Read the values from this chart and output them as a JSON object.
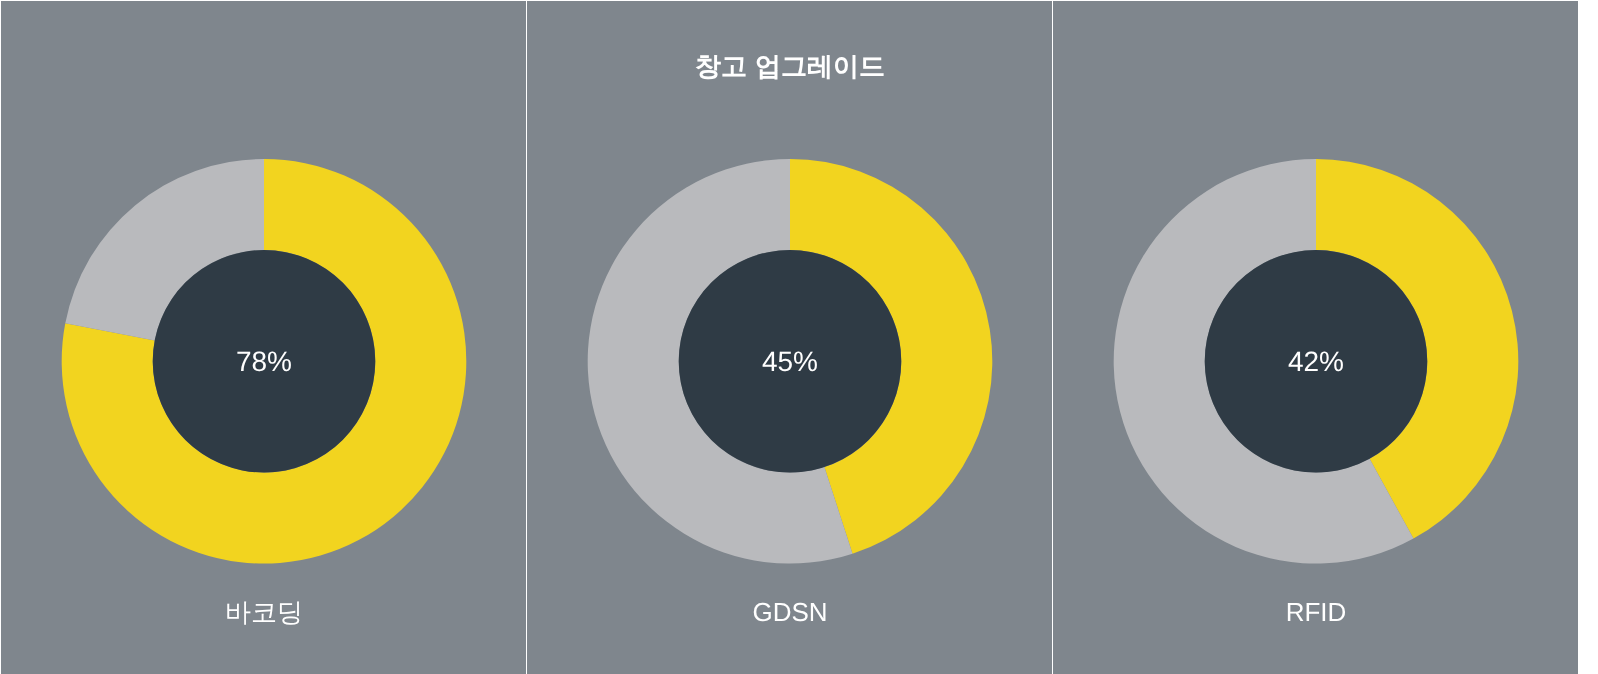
{
  "chart_data": [
    {
      "type": "donut",
      "xlabel": "바코딩",
      "categories": [
        null,
        null
      ],
      "values": [
        78,
        22
      ],
      "colors": [
        "#f2d41f",
        "#b9babd"
      ],
      "value_labels": [
        "78%",
        null
      ]
    },
    {
      "type": "donut",
      "title": "창고 업그레이드",
      "xlabel": "GDSN",
      "categories": [
        null,
        null
      ],
      "values": [
        45,
        55
      ],
      "colors": [
        "#f2d41f",
        "#b9babd"
      ],
      "value_labels": [
        "45%",
        null
      ]
    },
    {
      "type": "donut",
      "xlabel": "RFID",
      "categories": [
        null,
        null
      ],
      "values": [
        42,
        58
      ],
      "colors": [
        "#f2d41f",
        "#b9babd"
      ],
      "value_labels": [
        "42%",
        null
      ]
    }
  ]
}
